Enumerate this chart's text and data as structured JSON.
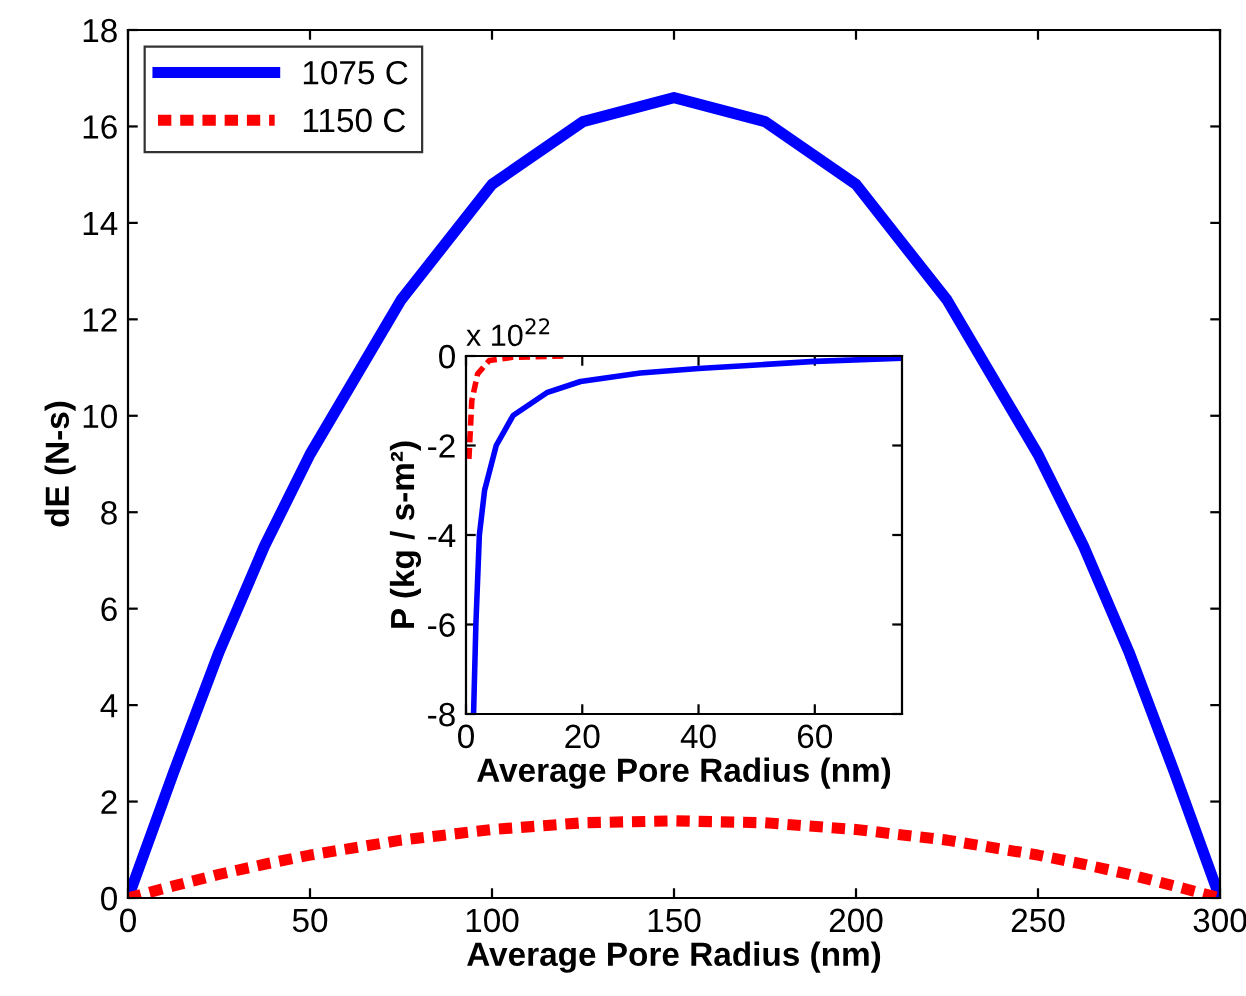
{
  "chart_data": [
    {
      "type": "line",
      "xlabel": "Average Pore Radius (nm)",
      "ylabel": "dE (N-s)",
      "xlim": [
        0,
        300
      ],
      "ylim": [
        0,
        18
      ],
      "xticks": [
        0,
        50,
        100,
        150,
        200,
        250,
        300
      ],
      "yticks": [
        0,
        2,
        4,
        6,
        8,
        10,
        12,
        14,
        16,
        18
      ],
      "grid": false,
      "legend": "top left",
      "x": [
        0,
        12.5,
        25,
        37.5,
        50,
        75,
        100,
        125,
        150,
        175,
        200,
        225,
        250,
        262.5,
        275,
        287.5,
        300
      ],
      "series": [
        {
          "name": "1075 C",
          "color": "#0000ff",
          "line_style": "solid",
          "values": [
            0,
            2.6,
            5.1,
            7.3,
            9.2,
            12.4,
            14.8,
            16.1,
            16.6,
            16.1,
            14.8,
            12.4,
            9.2,
            7.3,
            5.1,
            2.6,
            0
          ]
        },
        {
          "name": "1150 C",
          "color": "#ff0000",
          "line_style": "dashed",
          "values": [
            0,
            0.25,
            0.49,
            0.7,
            0.89,
            1.2,
            1.42,
            1.56,
            1.6,
            1.56,
            1.42,
            1.2,
            0.89,
            0.7,
            0.49,
            0.25,
            0
          ]
        }
      ]
    },
    {
      "type": "line",
      "xlabel": "Average Pore Radius (nm)",
      "ylabel": "P (kg / s-m²)",
      "xlim": [
        0,
        75
      ],
      "ylim": [
        -8,
        0
      ],
      "xticks": [
        0,
        20,
        40,
        60
      ],
      "yticks": [
        -8,
        -6,
        -4,
        -2,
        0
      ],
      "grid": false,
      "annotations": [
        "x 10$^{22}$"
      ],
      "series": [
        {
          "color": "#0000ff",
          "line_style": "solid",
          "x": [
            1.3,
            1.7,
            2.3,
            3.2,
            5.2,
            8.1,
            13.9,
            19.7,
            30,
            40,
            50,
            60,
            75
          ],
          "values": [
            -8,
            -6,
            -4,
            -3,
            -2,
            -1.33,
            -0.82,
            -0.57,
            -0.38,
            -0.28,
            -0.2,
            -0.12,
            -0.05
          ]
        },
        {
          "color": "#ff0000",
          "line_style": "dashed",
          "x": [
            0.5,
            1,
            2,
            4,
            8,
            17
          ],
          "values": [
            -2.3,
            -1.0,
            -0.4,
            -0.1,
            -0.03,
            0
          ]
        }
      ]
    }
  ]
}
